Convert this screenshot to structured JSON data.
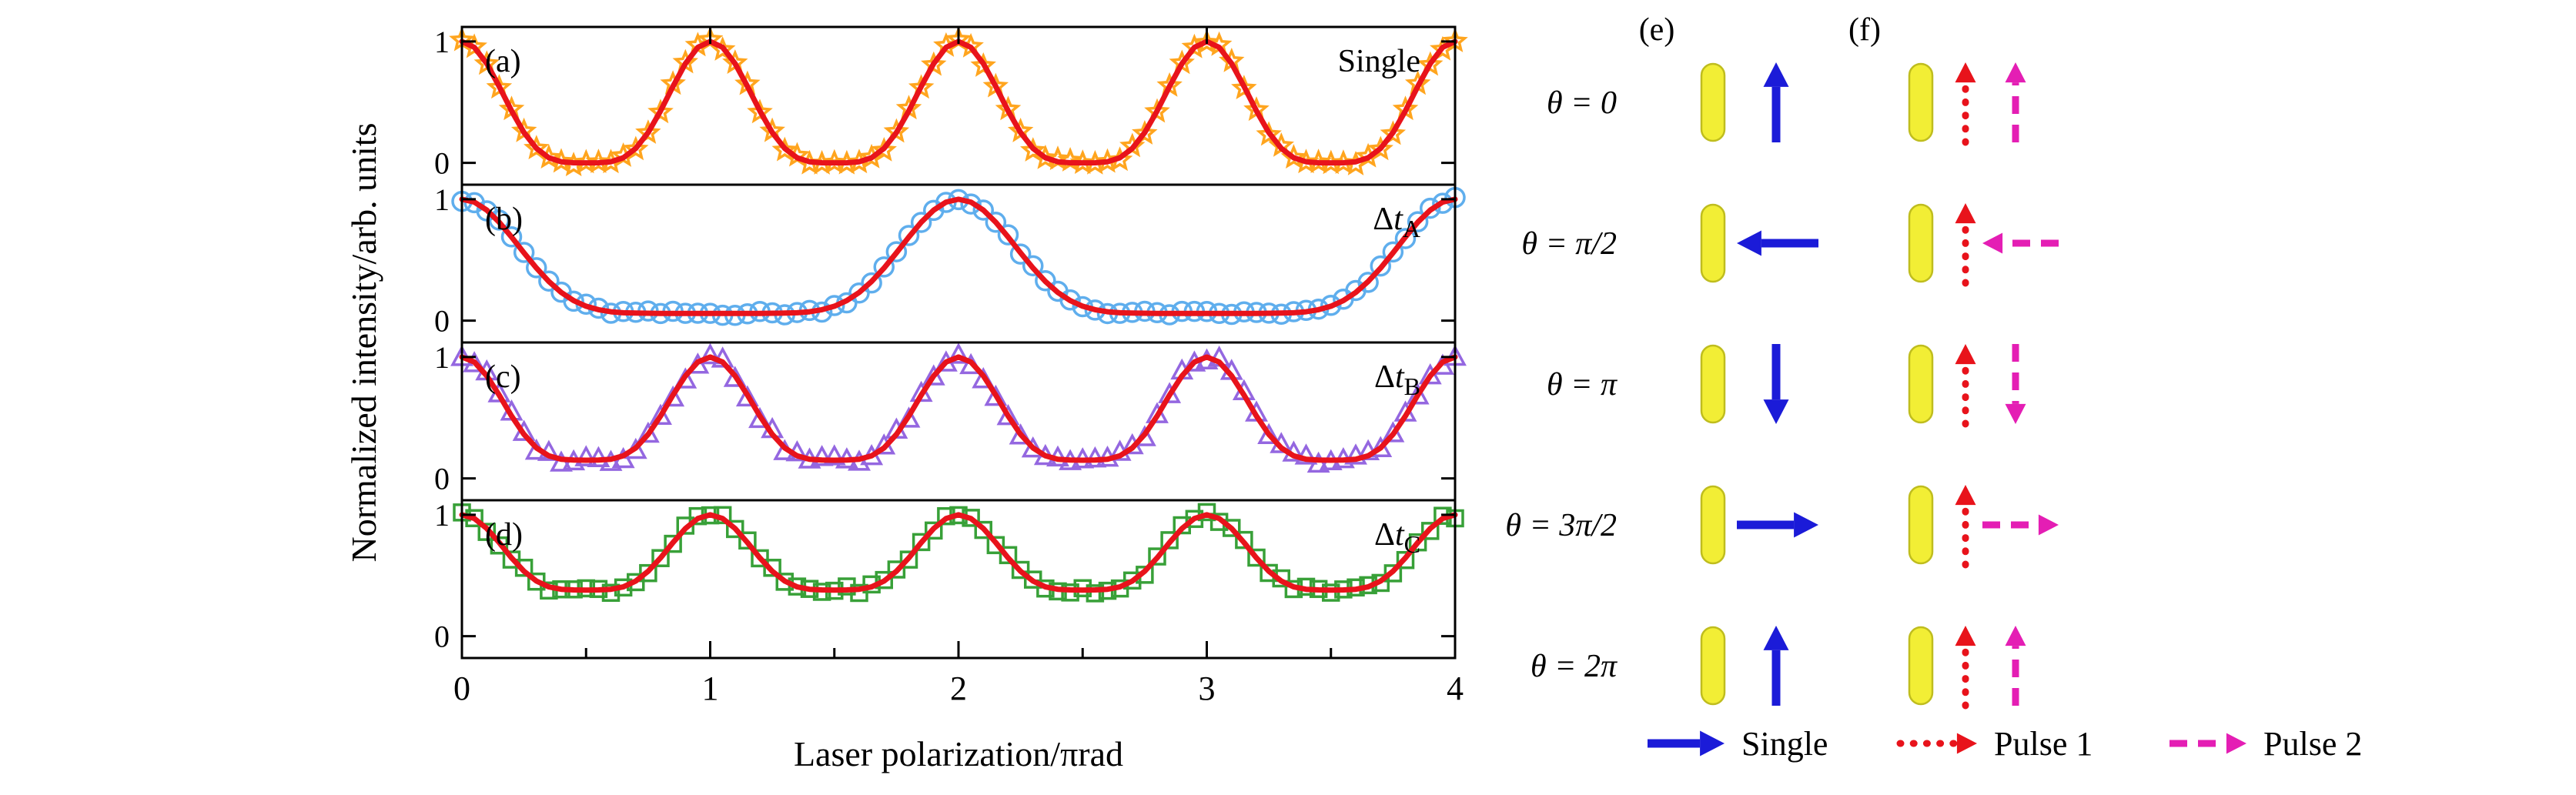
{
  "chart_data": {
    "type": "line",
    "title": "",
    "xlabel": "Laser polarization/πrad",
    "ylabel": "Normalized intensity/arb. units",
    "xlim": [
      0,
      4
    ],
    "ylim_display": [
      -0.18,
      1.12
    ],
    "x_ticks": [
      0,
      1,
      2,
      3,
      4
    ],
    "x_minor_ticks": [
      0.5,
      1.5,
      2.5,
      3.5
    ],
    "y_ticks": [
      0,
      1
    ],
    "grid": false,
    "legend_position": "none",
    "x_start": 0,
    "x_step": 0.05,
    "panels": [
      {
        "letter": "(a)",
        "label": "Single",
        "label_italic": "",
        "label_sub": "",
        "marker": "star",
        "marker_color": "#FFA51E",
        "line_color": "#E8131B",
        "scatter": 0.022,
        "fit_y": [
          1,
          0.952,
          0.818,
          0.63,
          0.428,
          0.25,
          0.119,
          0.042,
          0.009,
          0.001,
          0,
          0.001,
          0.009,
          0.042,
          0.119,
          0.25,
          0.428,
          0.63,
          0.818,
          0.952,
          1,
          0.952,
          0.818,
          0.63,
          0.428,
          0.25,
          0.119,
          0.042,
          0.009,
          0.001,
          0,
          0.001,
          0.009,
          0.042,
          0.119,
          0.25,
          0.428,
          0.63,
          0.818,
          0.952,
          1,
          0.952,
          0.818,
          0.63,
          0.428,
          0.25,
          0.119,
          0.042,
          0.009,
          0.001,
          0,
          0.001,
          0.009,
          0.042,
          0.119,
          0.25,
          0.428,
          0.63,
          0.818,
          0.952,
          1,
          0.952,
          0.818,
          0.63,
          0.428,
          0.25,
          0.119,
          0.042,
          0.009,
          0.001,
          0,
          0.001,
          0.009,
          0.042,
          0.119,
          0.25,
          0.428,
          0.63,
          0.818,
          0.952,
          1
        ]
      },
      {
        "letter": "(b)",
        "label": "Δ",
        "label_italic": "t",
        "label_sub": "A",
        "marker": "circle",
        "marker_color": "#5FAEED",
        "line_color": "#E8131B",
        "scatter": 0.02,
        "fit_y": [
          1,
          0.977,
          0.911,
          0.811,
          0.689,
          0.559,
          0.433,
          0.323,
          0.232,
          0.165,
          0.119,
          0.09,
          0.073,
          0.065,
          0.062,
          0.061,
          0.06,
          0.06,
          0.06,
          0.06,
          0.06,
          0.06,
          0.06,
          0.06,
          0.06,
          0.061,
          0.062,
          0.065,
          0.073,
          0.09,
          0.119,
          0.165,
          0.232,
          0.323,
          0.433,
          0.559,
          0.689,
          0.811,
          0.911,
          0.977,
          1,
          0.977,
          0.911,
          0.811,
          0.689,
          0.559,
          0.433,
          0.323,
          0.232,
          0.165,
          0.119,
          0.09,
          0.073,
          0.065,
          0.062,
          0.061,
          0.06,
          0.06,
          0.06,
          0.06,
          0.06,
          0.06,
          0.06,
          0.06,
          0.06,
          0.061,
          0.062,
          0.065,
          0.073,
          0.09,
          0.119,
          0.165,
          0.232,
          0.323,
          0.433,
          0.559,
          0.689,
          0.811,
          0.911,
          0.977,
          1
        ]
      },
      {
        "letter": "(c)",
        "label": "Δ",
        "label_italic": "t",
        "label_sub": "B",
        "marker": "triangle",
        "marker_color": "#9467E0",
        "line_color": "#E8131B",
        "scatter": 0.038,
        "fit_y": [
          1,
          0.959,
          0.845,
          0.686,
          0.514,
          0.363,
          0.251,
          0.186,
          0.158,
          0.151,
          0.15,
          0.151,
          0.158,
          0.186,
          0.251,
          0.363,
          0.514,
          0.686,
          0.845,
          0.959,
          1,
          0.959,
          0.845,
          0.686,
          0.514,
          0.363,
          0.251,
          0.186,
          0.158,
          0.151,
          0.15,
          0.151,
          0.158,
          0.186,
          0.251,
          0.363,
          0.514,
          0.686,
          0.845,
          0.959,
          1,
          0.959,
          0.845,
          0.686,
          0.514,
          0.363,
          0.251,
          0.186,
          0.158,
          0.151,
          0.15,
          0.151,
          0.158,
          0.186,
          0.251,
          0.363,
          0.514,
          0.686,
          0.845,
          0.959,
          1,
          0.959,
          0.845,
          0.686,
          0.514,
          0.363,
          0.251,
          0.186,
          0.158,
          0.151,
          0.15,
          0.151,
          0.158,
          0.186,
          0.251,
          0.363,
          0.514,
          0.686,
          0.845,
          0.959,
          1
        ]
      },
      {
        "letter": "(d)",
        "label": "Δ",
        "label_italic": "t",
        "label_sub": "C",
        "marker": "square",
        "marker_color": "#38A038",
        "line_color": "#E8131B",
        "scatter": 0.03,
        "fit_y": [
          1,
          0.97,
          0.887,
          0.771,
          0.645,
          0.535,
          0.454,
          0.406,
          0.386,
          0.381,
          0.38,
          0.381,
          0.386,
          0.406,
          0.454,
          0.535,
          0.645,
          0.771,
          0.887,
          0.97,
          1,
          0.97,
          0.887,
          0.771,
          0.645,
          0.535,
          0.454,
          0.406,
          0.386,
          0.381,
          0.38,
          0.381,
          0.386,
          0.406,
          0.454,
          0.535,
          0.645,
          0.771,
          0.887,
          0.97,
          1,
          0.97,
          0.887,
          0.771,
          0.645,
          0.535,
          0.454,
          0.406,
          0.386,
          0.381,
          0.38,
          0.381,
          0.386,
          0.406,
          0.454,
          0.535,
          0.645,
          0.771,
          0.887,
          0.97,
          1,
          0.97,
          0.887,
          0.771,
          0.645,
          0.535,
          0.454,
          0.406,
          0.386,
          0.381,
          0.38,
          0.381,
          0.386,
          0.406,
          0.454,
          0.535,
          0.645,
          0.771,
          0.887,
          0.97,
          1
        ]
      }
    ]
  },
  "diagram": {
    "header_e": "(e)",
    "header_f": "(f)",
    "rod_color": "#F2EE35",
    "rod_edge": "#BFBD1E",
    "arrow_single_color": "#1B1BD8",
    "arrow_pulse1_color": "#E8131B",
    "arrow_pulse2_color": "#E41EB4",
    "rows": [
      {
        "theta": "θ = 0",
        "single": "up",
        "pulse1": "up",
        "pulse2": "up"
      },
      {
        "theta": "θ = π/2",
        "single": "left",
        "pulse1": "up",
        "pulse2": "left"
      },
      {
        "theta": "θ = π",
        "single": "down",
        "pulse1": "up",
        "pulse2": "down"
      },
      {
        "theta": "θ = 3π/2",
        "single": "right",
        "pulse1": "up",
        "pulse2": "right"
      },
      {
        "theta": "θ = 2π",
        "single": "up",
        "pulse1": "up",
        "pulse2": "up"
      }
    ],
    "legend": [
      {
        "label": "Single",
        "style": "solid",
        "color": "#1B1BD8"
      },
      {
        "label": "Pulse 1",
        "style": "dotted",
        "color": "#E8131B"
      },
      {
        "label": "Pulse 2",
        "style": "dashed",
        "color": "#E41EB4"
      }
    ]
  }
}
